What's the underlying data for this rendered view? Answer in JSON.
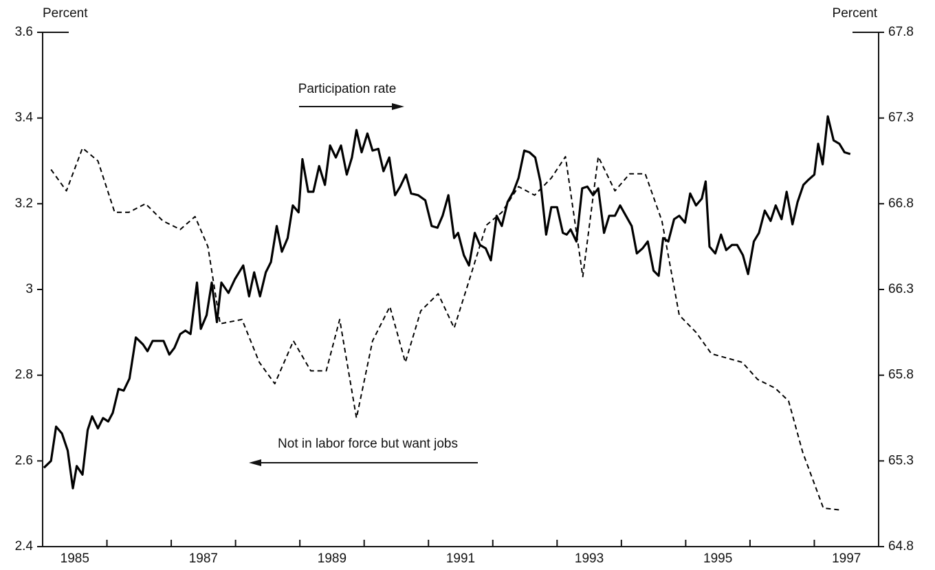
{
  "chart_data": {
    "type": "line",
    "y_label": "Percent",
    "y2_label": "Percent",
    "xlim": [
      1985,
      1998
    ],
    "xticks": [
      1985,
      1987,
      1989,
      1991,
      1993,
      1995,
      1997
    ],
    "x_minor_ticks": [
      1986,
      1987,
      1988,
      1989,
      1990,
      1991,
      1992,
      1993,
      1994,
      1995,
      1996,
      1997
    ],
    "ylim": [
      2.4,
      3.6
    ],
    "yticks": [
      2.4,
      2.6,
      2.8,
      3,
      3.2,
      3.4,
      3.6
    ],
    "y2lim": [
      64.8,
      67.8
    ],
    "y2ticks": [
      64.8,
      65.3,
      65.8,
      66.3,
      66.8,
      67.3,
      67.8
    ],
    "annotations": [
      "Participation rate",
      "Not in labor force but want jobs"
    ],
    "series": [
      {
        "name": "Participation rate",
        "color": "#000000",
        "dash": "solid",
        "axis": "y2",
        "x": [
          1985.02,
          1985.13,
          1985.21,
          1985.3,
          1985.39,
          1985.47,
          1985.53,
          1985.62,
          1985.7,
          1985.77,
          1985.86,
          1985.94,
          1986.02,
          1986.09,
          1986.18,
          1986.26,
          1986.35,
          1986.45,
          1986.56,
          1986.63,
          1986.71,
          1986.8,
          1986.88,
          1986.97,
          1987.05,
          1987.14,
          1987.22,
          1987.3,
          1987.4,
          1987.46,
          1987.55,
          1987.63,
          1987.71,
          1987.78,
          1987.89,
          1987.99,
          1988.12,
          1988.21,
          1988.29,
          1988.38,
          1988.47,
          1988.55,
          1988.64,
          1988.72,
          1988.81,
          1988.89,
          1988.98,
          1989.04,
          1989.13,
          1989.21,
          1989.3,
          1989.39,
          1989.47,
          1989.56,
          1989.64,
          1989.73,
          1989.81,
          1989.88,
          1989.96,
          1990.05,
          1990.13,
          1990.22,
          1990.3,
          1990.39,
          1990.48,
          1990.56,
          1990.65,
          1990.73,
          1990.84,
          1990.95,
          1991.05,
          1991.14,
          1991.22,
          1991.31,
          1991.4,
          1991.46,
          1991.55,
          1991.63,
          1991.72,
          1991.8,
          1991.89,
          1991.97,
          1992.06,
          1992.14,
          1992.23,
          1992.32,
          1992.4,
          1992.49,
          1992.57,
          1992.66,
          1992.74,
          1992.83,
          1992.91,
          1993.0,
          1993.09,
          1993.15,
          1993.21,
          1993.3,
          1993.39,
          1993.47,
          1993.56,
          1993.64,
          1993.73,
          1993.81,
          1993.9,
          1993.98,
          1994.07,
          1994.16,
          1994.24,
          1994.33,
          1994.41,
          1994.5,
          1994.58,
          1994.65,
          1994.73,
          1994.82,
          1994.9,
          1994.99,
          1995.07,
          1995.16,
          1995.25,
          1995.31,
          1995.37,
          1995.46,
          1995.55,
          1995.63,
          1995.72,
          1995.8,
          1995.89,
          1995.97,
          1996.06,
          1996.14,
          1996.23,
          1996.32,
          1996.4,
          1996.49,
          1996.57,
          1996.66,
          1996.74,
          1996.83,
          1996.91,
          1997.0,
          1997.06,
          1997.13,
          1997.21,
          1997.3,
          1997.39,
          1997.47,
          1997.56
        ],
        "values": [
          65.26,
          65.3,
          65.5,
          65.46,
          65.36,
          65.14,
          65.27,
          65.22,
          65.48,
          65.56,
          65.49,
          65.55,
          65.53,
          65.58,
          65.72,
          65.71,
          65.78,
          66.02,
          65.98,
          65.94,
          66.0,
          66.0,
          66.0,
          65.92,
          65.96,
          66.04,
          66.06,
          66.04,
          66.34,
          66.07,
          66.15,
          66.34,
          66.11,
          66.34,
          66.28,
          66.36,
          66.44,
          66.26,
          66.4,
          66.26,
          66.4,
          66.46,
          66.67,
          66.52,
          66.6,
          66.79,
          66.75,
          67.06,
          66.87,
          66.87,
          67.02,
          66.91,
          67.14,
          67.07,
          67.14,
          66.97,
          67.07,
          67.23,
          67.1,
          67.21,
          67.11,
          67.12,
          66.99,
          67.07,
          66.85,
          66.9,
          66.97,
          66.86,
          66.85,
          66.82,
          66.67,
          66.66,
          66.73,
          66.85,
          66.6,
          66.63,
          66.5,
          66.44,
          66.63,
          66.56,
          66.54,
          66.47,
          66.73,
          66.67,
          66.81,
          66.87,
          66.95,
          67.11,
          67.1,
          67.07,
          66.93,
          66.62,
          66.78,
          66.78,
          66.63,
          66.62,
          66.65,
          66.58,
          66.89,
          66.9,
          66.85,
          66.89,
          66.63,
          66.73,
          66.73,
          66.79,
          66.73,
          66.67,
          66.51,
          66.54,
          66.58,
          66.41,
          66.38,
          66.6,
          66.58,
          66.71,
          66.73,
          66.69,
          66.86,
          66.79,
          66.83,
          66.93,
          66.55,
          66.51,
          66.62,
          66.53,
          66.56,
          66.56,
          66.5,
          66.39,
          66.58,
          66.63,
          66.76,
          66.7,
          66.79,
          66.71,
          66.87,
          66.68,
          66.81,
          66.91,
          66.94,
          66.97,
          67.15,
          67.03,
          67.31,
          67.17,
          67.15,
          67.1,
          67.09
        ]
      },
      {
        "name": "Not in labor force but want jobs",
        "color": "#000000",
        "dash": "dashed",
        "axis": "y",
        "x": [
          1985.13,
          1985.37,
          1985.62,
          1985.86,
          1986.12,
          1986.34,
          1986.6,
          1986.87,
          1987.14,
          1987.37,
          1987.57,
          1987.76,
          1988.1,
          1988.37,
          1988.61,
          1988.9,
          1989.17,
          1989.41,
          1989.62,
          1989.88,
          1990.13,
          1990.4,
          1990.64,
          1990.88,
          1991.15,
          1991.4,
          1991.63,
          1991.9,
          1992.14,
          1992.4,
          1992.65,
          1992.91,
          1993.13,
          1993.4,
          1993.64,
          1993.9,
          1994.13,
          1994.37,
          1994.63,
          1994.9,
          1995.16,
          1995.4,
          1995.64,
          1995.88,
          1996.12,
          1996.39,
          1996.6,
          1996.82,
          1997.14,
          1997.43
        ],
        "values": [
          3.28,
          3.23,
          3.33,
          3.3,
          3.18,
          3.18,
          3.2,
          3.16,
          3.14,
          3.17,
          3.1,
          2.92,
          2.93,
          2.83,
          2.78,
          2.88,
          2.81,
          2.81,
          2.93,
          2.7,
          2.88,
          2.96,
          2.83,
          2.95,
          2.99,
          2.91,
          3.02,
          3.15,
          3.18,
          3.24,
          3.22,
          3.26,
          3.31,
          3.03,
          3.31,
          3.23,
          3.27,
          3.27,
          3.16,
          2.94,
          2.9,
          2.85,
          2.84,
          2.83,
          2.79,
          2.77,
          2.74,
          2.62,
          2.49,
          2.485
        ]
      }
    ]
  }
}
